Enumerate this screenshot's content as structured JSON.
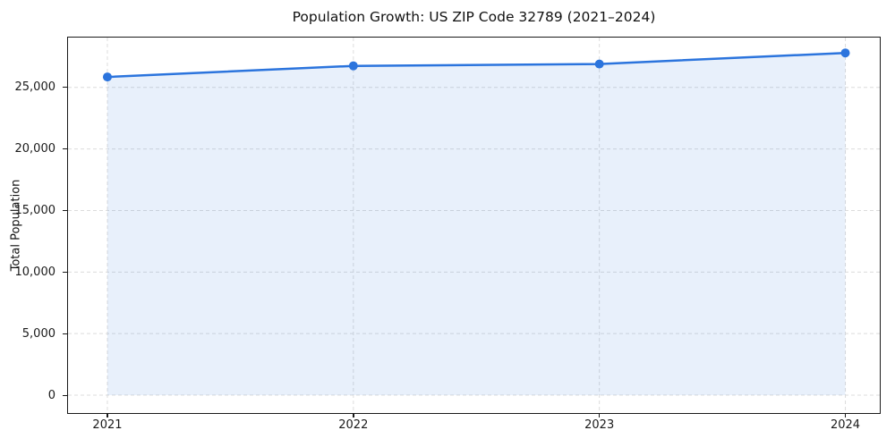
{
  "figure": {
    "title": "Population Growth: US ZIP Code 32789 (2021–2024)"
  },
  "chart_data": {
    "type": "area",
    "title": "Population Growth: US ZIP Code 32789 (2021–2024)",
    "xlabel": "",
    "ylabel": "Total Population",
    "x": [
      2021,
      2022,
      2023,
      2024
    ],
    "series": [
      {
        "name": "Total Population",
        "values": [
          25850,
          26750,
          26900,
          27800
        ]
      }
    ],
    "xtick_labels": [
      "2021",
      "2022",
      "2023",
      "2024"
    ],
    "yticks": [
      0,
      5000,
      10000,
      15000,
      20000,
      25000
    ],
    "ytick_labels": [
      "0",
      "5,000",
      "10,000",
      "15,000",
      "20,000",
      "25,000"
    ],
    "xlim": [
      2020.84,
      2024.14
    ],
    "ylim": [
      -1450,
      29050
    ],
    "grid": true,
    "legend": "none",
    "marker": "circle",
    "colors": {
      "line": "#2b74dd",
      "fill": "rgba(43,116,221,0.11)",
      "grid": "#dcdcdc",
      "axis": "#1a1a1a",
      "background": "#ffffff"
    }
  }
}
